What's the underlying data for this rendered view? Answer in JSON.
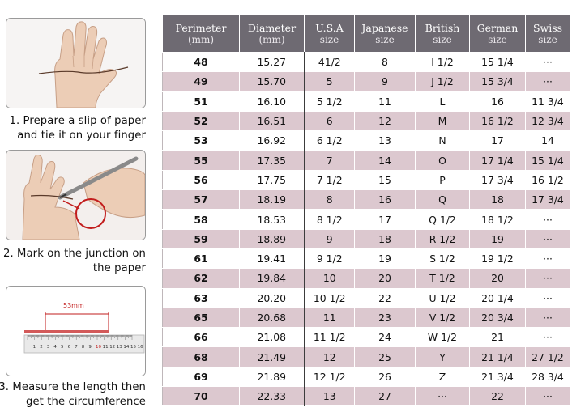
{
  "instructions": {
    "step1": [
      "1. Prepare a slip of paper",
      "and tie it on your finger"
    ],
    "step2": [
      "2. Mark on the junction on",
      "the paper"
    ],
    "step3": [
      "3. Measure the length then",
      "get the circumference"
    ],
    "ruler_length": "53mm",
    "ruler_ticks": [
      "1",
      "2",
      "3",
      "4",
      "5",
      "6",
      "7",
      "8",
      "9",
      "10",
      "11",
      "12",
      "13",
      "14",
      "15",
      "16"
    ]
  },
  "table": {
    "headers": [
      {
        "top": "Perimeter",
        "sub": "(mm)"
      },
      {
        "top": "Diameter",
        "sub": "(mm)"
      },
      {
        "top": "U.S.A",
        "sub": "size"
      },
      {
        "top": "Japanese",
        "sub": "size"
      },
      {
        "top": "British",
        "sub": "size"
      },
      {
        "top": "German",
        "sub": "size"
      },
      {
        "top": "Swiss",
        "sub": "size"
      }
    ],
    "rows": [
      [
        "48",
        "15.27",
        "41/2",
        "8",
        "I 1/2",
        "15 1/4",
        "···"
      ],
      [
        "49",
        "15.70",
        "5",
        "9",
        "J 1/2",
        "15 3/4",
        "···"
      ],
      [
        "51",
        "16.10",
        "5 1/2",
        "11",
        "L",
        "16",
        "11 3/4"
      ],
      [
        "52",
        "16.51",
        "6",
        "12",
        "M",
        "16 1/2",
        "12 3/4"
      ],
      [
        "53",
        "16.92",
        "6 1/2",
        "13",
        "N",
        "17",
        "14"
      ],
      [
        "55",
        "17.35",
        "7",
        "14",
        "O",
        "17 1/4",
        "15 1/4"
      ],
      [
        "56",
        "17.75",
        "7 1/2",
        "15",
        "P",
        "17 3/4",
        "16 1/2"
      ],
      [
        "57",
        "18.19",
        "8",
        "16",
        "Q",
        "18",
        "17 3/4"
      ],
      [
        "58",
        "18.53",
        "8 1/2",
        "17",
        "Q  1/2",
        "18 1/2",
        "···"
      ],
      [
        "59",
        "18.89",
        "9",
        "18",
        "R 1/2",
        "19",
        "···"
      ],
      [
        "61",
        "19.41",
        "9 1/2",
        "19",
        "S 1/2",
        "19 1/2",
        "···"
      ],
      [
        "62",
        "19.84",
        "10",
        "20",
        "T 1/2",
        "20",
        "···"
      ],
      [
        "63",
        "20.20",
        "10 1/2",
        "22",
        "U 1/2",
        "20 1/4",
        "···"
      ],
      [
        "65",
        "20.68",
        "11",
        "23",
        "V 1/2",
        "20 3/4",
        "···"
      ],
      [
        "66",
        "21.08",
        "11 1/2",
        "24",
        "W 1/2",
        "21",
        "···"
      ],
      [
        "68",
        "21.49",
        "12",
        "25",
        "Y",
        "21 1/4",
        "27 1/2"
      ],
      [
        "69",
        "21.89",
        "12 1/2",
        "26",
        "Z",
        "21 3/4",
        "28 3/4"
      ],
      [
        "70",
        "22.33",
        "13",
        "27",
        "···",
        "22",
        "···"
      ]
    ]
  },
  "colors": {
    "header_bg": "#6e6a72",
    "row_alt": "#dcc8cf",
    "row_plain": "#ffffff"
  }
}
